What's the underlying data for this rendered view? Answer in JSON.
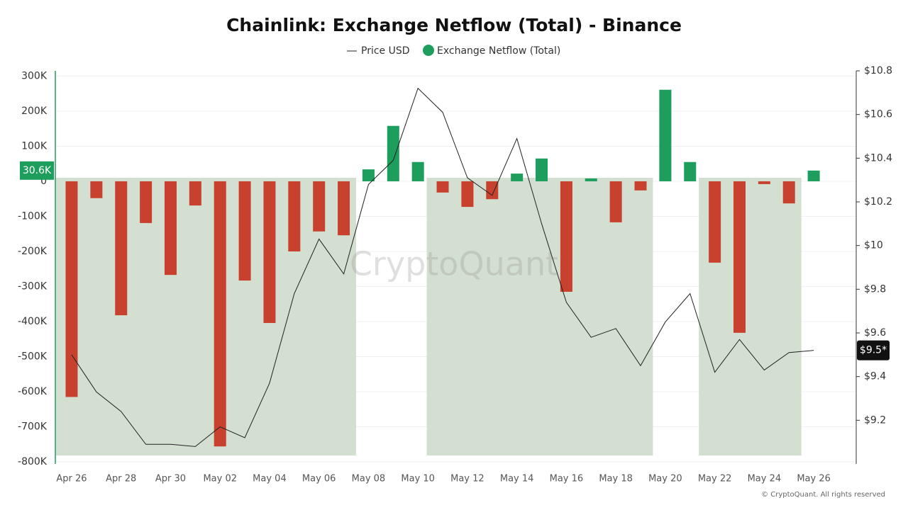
{
  "chart_data": {
    "type": "bar-line",
    "title": "Chainlink: Exchange Netflow (Total) - Binance",
    "categories": [
      "Apr 26",
      null,
      "Apr 28",
      null,
      "Apr 30",
      null,
      "May 02",
      null,
      "May 04",
      null,
      "May 06",
      null,
      "May 08",
      null,
      "May 10",
      null,
      "May 12",
      null,
      "May 14",
      null,
      "May 16",
      null,
      "May 18",
      null,
      "May 20",
      null,
      "May 22",
      null,
      "May 24",
      null,
      "May 26"
    ],
    "series": [
      {
        "name": "Price USD",
        "type": "line",
        "axis": "y2",
        "color": "#222222",
        "values": [
          9.5,
          9.33,
          9.24,
          9.09,
          9.09,
          9.08,
          9.17,
          9.12,
          9.37,
          9.78,
          10.03,
          9.87,
          10.28,
          10.39,
          10.72,
          10.61,
          10.31,
          10.23,
          10.49,
          10.1,
          9.74,
          9.58,
          9.62,
          9.45,
          9.65,
          9.78,
          9.42,
          9.57,
          9.43,
          9.51,
          9.52
        ],
        "current_label": "$9.5*"
      },
      {
        "name": "Exchange Netflow (Total)",
        "type": "bar",
        "color": "#1e9e5c",
        "negative_color": "#c8412e",
        "values": [
          -615000,
          -48000,
          -382000,
          -119000,
          -267000,
          -69000,
          -756000,
          -283000,
          -404000,
          -200000,
          -143000,
          -154000,
          34000,
          158000,
          55000,
          -32000,
          -73000,
          -51000,
          22000,
          65000,
          -315000,
          8000,
          -117000,
          -26000,
          261000,
          55000,
          -232000,
          -432000,
          -8000,
          -63000,
          30600
        ],
        "current_label": "30.6K"
      }
    ],
    "ylim": [
      -806000,
      315000
    ],
    "yticks": [
      {
        "value": 300000,
        "label": "300K"
      },
      {
        "value": 200000,
        "label": "200K"
      },
      {
        "value": 100000,
        "label": "100K"
      },
      0,
      {
        "value": -100000,
        "label": "-100K"
      },
      {
        "value": -200000,
        "label": "-200K"
      },
      {
        "value": -300000,
        "label": "-300K"
      },
      {
        "value": -400000,
        "label": "-400K"
      },
      {
        "value": -500000,
        "label": "-500K"
      },
      {
        "value": -600000,
        "label": "-600K"
      },
      {
        "value": -700000,
        "label": "-700K"
      },
      {
        "value": -800000,
        "label": "-800K"
      }
    ],
    "y2lim": [
      9.0,
      10.8
    ],
    "y2ticks": [
      {
        "value": 10.8,
        "label": "$10.8"
      },
      {
        "value": 10.6,
        "label": "$10.6"
      },
      {
        "value": 10.4,
        "label": "$10.4"
      },
      {
        "value": 10.2,
        "label": "$10.2"
      },
      {
        "value": 10,
        "label": "$10"
      },
      {
        "value": 9.8,
        "label": "$9.8"
      },
      {
        "value": 9.6,
        "label": "$9.6"
      },
      {
        "value": 9.4,
        "label": "$9.4"
      },
      {
        "value": 9.2,
        "label": "$9.2"
      }
    ],
    "shaded_ranges": [
      [
        0,
        11
      ],
      [
        15,
        23
      ],
      [
        26,
        29
      ]
    ],
    "shade_color": "#d3dfd0",
    "grid": true,
    "watermark": "CryptoQuant",
    "footer": "© CryptoQuant. All rights reserved"
  }
}
